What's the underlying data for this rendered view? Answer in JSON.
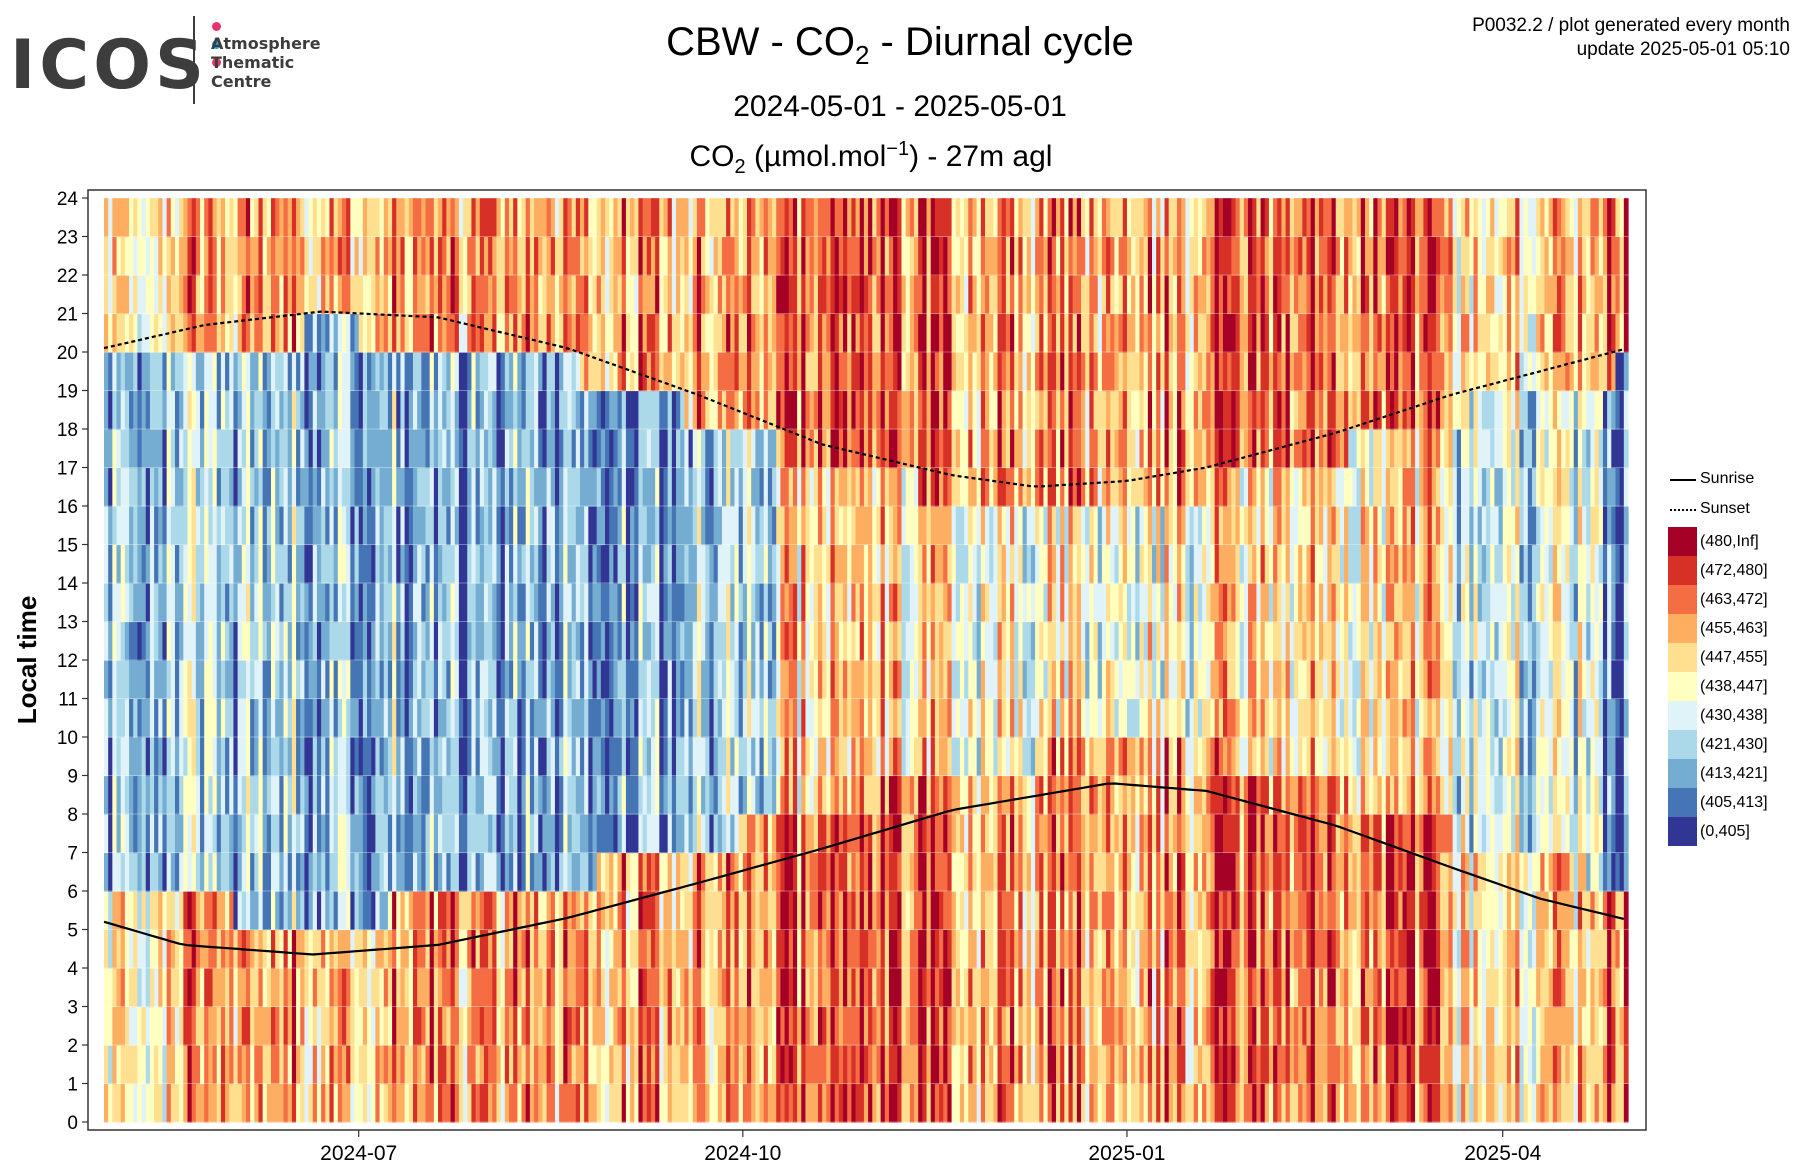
{
  "logo": {
    "word": "ICOS",
    "lines": [
      "Atmosphere",
      "Thematic",
      "Centre"
    ],
    "dot_colors": [
      "#e8336d",
      "#1aa0e8",
      "#e8336d"
    ]
  },
  "header": {
    "title_main": "CBW - CO",
    "title_sub": "2",
    "title_tail": " - Diurnal cycle",
    "period": "2024-05-01 - 2025-05-01",
    "unit_a": "CO",
    "unit_sub": "2",
    "unit_b": " (µmol.mol",
    "unit_sup": "−1",
    "unit_c": ") - 27m agl"
  },
  "meta": {
    "line1": "P0032.2 / plot generated every month",
    "line2": "update  2025-05-01 05:10"
  },
  "chart_data": {
    "type": "heatmap",
    "x_range": [
      "2024-05-01",
      "2025-05-01"
    ],
    "x_ticks": [
      "2024-07",
      "2024-10",
      "2025-01",
      "2025-04"
    ],
    "x_tick_dates": [
      "2024-07-01",
      "2024-10-01",
      "2025-01-01",
      "2025-04-01"
    ],
    "ylabel": "Local time",
    "ylim": [
      0,
      24
    ],
    "y_ticks": [
      0,
      1,
      2,
      3,
      4,
      5,
      6,
      7,
      8,
      9,
      10,
      11,
      12,
      13,
      14,
      15,
      16,
      17,
      18,
      19,
      20,
      21,
      22,
      23,
      24
    ],
    "grid": true,
    "legend_position": "right",
    "color_bins": [
      {
        "label": "(480,Inf]",
        "color": "#a50026"
      },
      {
        "label": "(472,480]",
        "color": "#d73027"
      },
      {
        "label": "(463,472]",
        "color": "#f46d43"
      },
      {
        "label": "(455,463]",
        "color": "#fdae61"
      },
      {
        "label": "(447,455]",
        "color": "#fee090"
      },
      {
        "label": "(438,447]",
        "color": "#ffffbf"
      },
      {
        "label": "(430,438]",
        "color": "#e0f3f8"
      },
      {
        "label": "(421,430]",
        "color": "#abd9e9"
      },
      {
        "label": "(413,421]",
        "color": "#74add1"
      },
      {
        "label": "(405,413]",
        "color": "#4575b4"
      },
      {
        "label": "(0,405]",
        "color": "#313695"
      }
    ],
    "lines": [
      {
        "name": "Sunrise",
        "style": "solid",
        "points": [
          [
            "2024-05-01",
            5.2
          ],
          [
            "2024-05-20",
            4.6
          ],
          [
            "2024-06-20",
            4.35
          ],
          [
            "2024-07-20",
            4.6
          ],
          [
            "2024-08-20",
            5.3
          ],
          [
            "2024-09-20",
            6.2
          ],
          [
            "2024-10-20",
            7.1
          ],
          [
            "2024-11-20",
            8.1
          ],
          [
            "2024-12-28",
            8.8
          ],
          [
            "2025-01-20",
            8.6
          ],
          [
            "2025-02-20",
            7.7
          ],
          [
            "2025-03-20",
            6.6
          ],
          [
            "2025-04-10",
            5.8
          ],
          [
            "2025-05-01",
            5.25
          ]
        ]
      },
      {
        "name": "Sunset",
        "style": "dotted",
        "points": [
          [
            "2024-05-01",
            20.1
          ],
          [
            "2024-05-25",
            20.7
          ],
          [
            "2024-06-22",
            21.05
          ],
          [
            "2024-07-20",
            20.9
          ],
          [
            "2024-08-20",
            20.1
          ],
          [
            "2024-09-20",
            18.9
          ],
          [
            "2024-10-20",
            17.6
          ],
          [
            "2024-11-20",
            16.8
          ],
          [
            "2024-12-10",
            16.5
          ],
          [
            "2025-01-01",
            16.65
          ],
          [
            "2025-01-20",
            17.0
          ],
          [
            "2025-02-20",
            17.9
          ],
          [
            "2025-03-20",
            18.9
          ],
          [
            "2025-04-10",
            19.5
          ],
          [
            "2025-05-01",
            20.1
          ]
        ]
      }
    ],
    "daily_profile": {
      "note_levels": "bin index per day (0 = (480,Inf] ... 10 = (0,405]) for night and day",
      "segments": [
        {
          "from": "2024-05-01",
          "to": "2024-05-20",
          "night": 4,
          "day": 7
        },
        {
          "from": "2024-05-20",
          "to": "2024-07-10",
          "night": 3,
          "day": 7
        },
        {
          "from": "2024-07-10",
          "to": "2024-09-15",
          "night": 3,
          "day": 8
        },
        {
          "from": "2024-09-15",
          "to": "2024-10-10",
          "night": 3,
          "day": 7
        },
        {
          "from": "2024-10-10",
          "to": "2024-11-20",
          "night": 2,
          "day": 4
        },
        {
          "from": "2024-11-20",
          "to": "2025-01-20",
          "night": 3,
          "day": 5
        },
        {
          "from": "2025-01-20",
          "to": "2025-03-20",
          "night": 2,
          "day": 4
        },
        {
          "from": "2025-03-20",
          "to": "2025-04-25",
          "night": 4,
          "day": 6
        },
        {
          "from": "2025-04-25",
          "to": "2025-05-01",
          "night": 2,
          "day": 9
        }
      ]
    }
  }
}
